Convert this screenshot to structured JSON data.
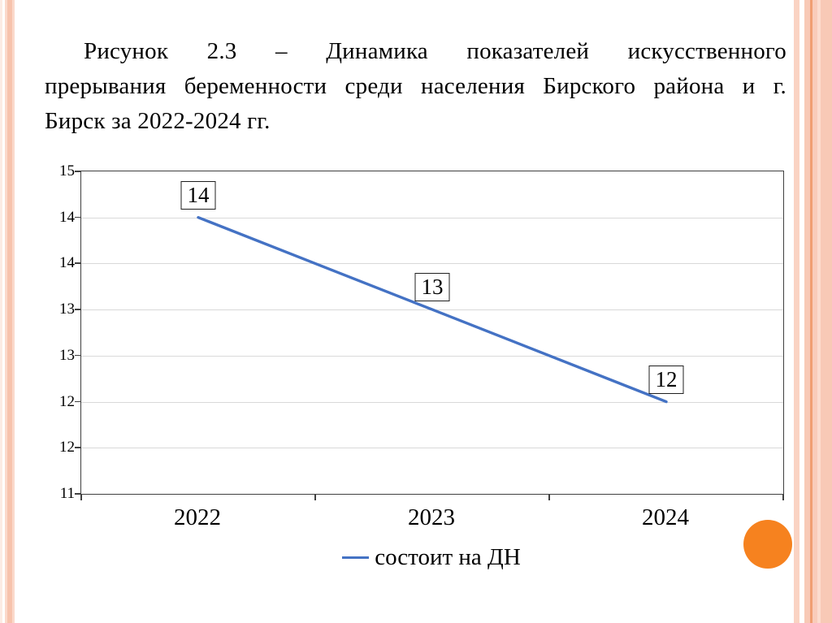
{
  "page": {
    "background": "#ffffff"
  },
  "caption": {
    "line1": "Рисунок 2.3 – Динамика показателей искусственного",
    "line2": "прерывания беременности среди населения Бирского района и г.",
    "line3": "Бирск за 2022-2024 гг."
  },
  "chart_data": {
    "type": "line",
    "title": "",
    "categories": [
      "2022",
      "2023",
      "2024"
    ],
    "series": [
      {
        "name": "состоит на ДН",
        "values": [
          14,
          13,
          12
        ],
        "color": "#4472C4"
      }
    ],
    "ylim": [
      11,
      14.5
    ],
    "y_tick_step": 0.5,
    "y_tick_labels_top_to_bottom": [
      "15",
      "14",
      "14",
      "13",
      "13",
      "12",
      "12",
      "11"
    ],
    "grid": true,
    "gridline_color": "#d9d9d9",
    "axis_color": "#404040",
    "data_labels_shown": true,
    "legend_position": "bottom",
    "legend_entries": [
      "состоит на ДН"
    ]
  },
  "decor": {
    "circle_color": "#F6821F",
    "stripe_peach": "#f7c3ad",
    "stripe_dark_line": "#f09e72"
  }
}
